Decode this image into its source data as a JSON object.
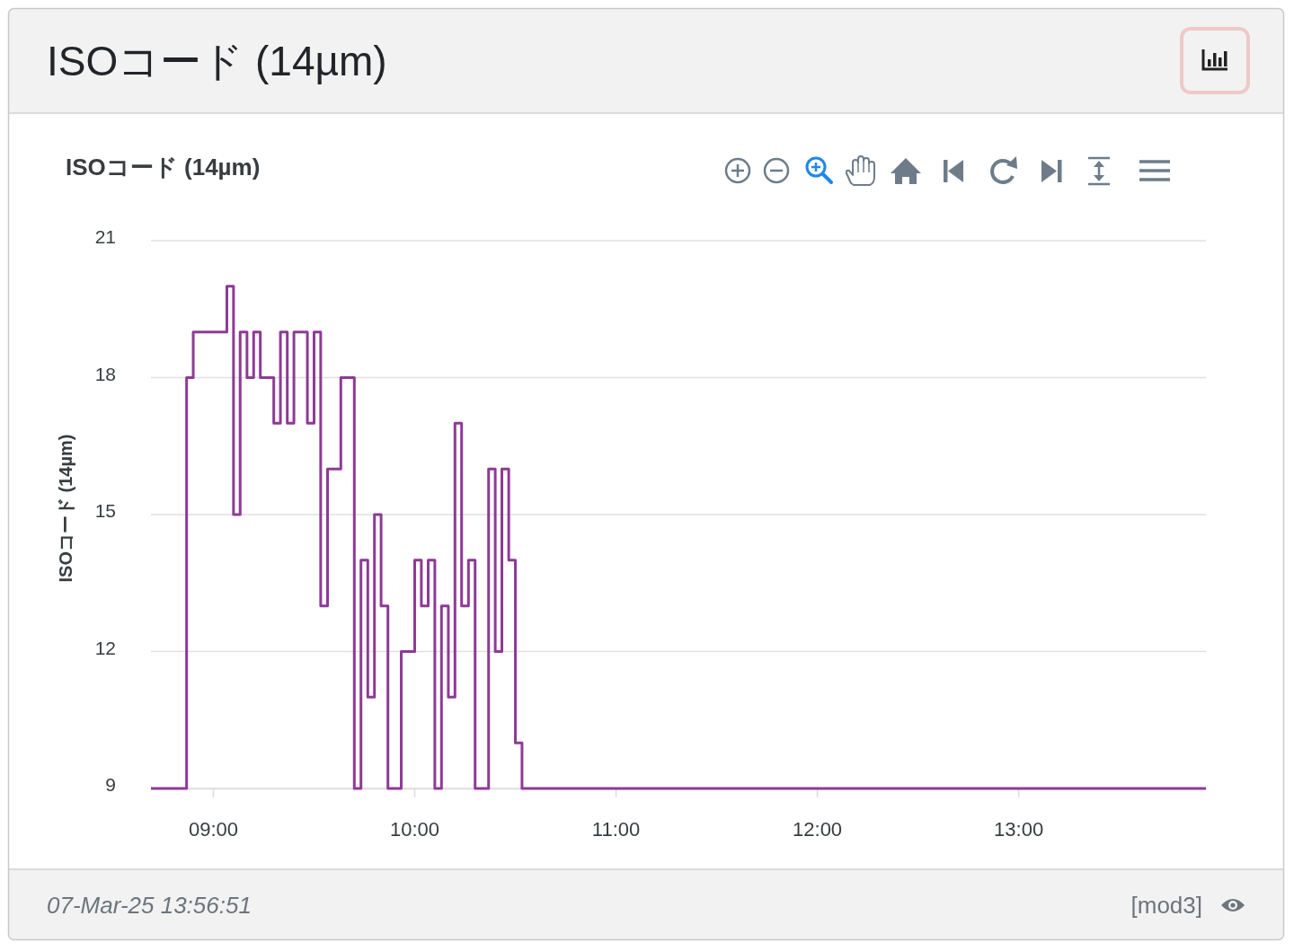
{
  "chart_data": {
    "type": "step",
    "title": "ISOコード (14µm)",
    "ylabel": "ISOコード (14µm)",
    "annotations": [
      "ISOコード (14µm)",
      "07-Mar-25 13:56:51",
      "[mod3]"
    ],
    "x": [
      8.69,
      8.867,
      8.9,
      9.067,
      9.1,
      9.133,
      9.167,
      9.2,
      9.233,
      9.3,
      9.333,
      9.367,
      9.4,
      9.467,
      9.5,
      9.533,
      9.567,
      9.633,
      9.7,
      9.733,
      9.767,
      9.8,
      9.833,
      9.867,
      9.933,
      10.0,
      10.033,
      10.067,
      10.1,
      10.133,
      10.167,
      10.2,
      10.233,
      10.267,
      10.3,
      10.367,
      10.4,
      10.433,
      10.467,
      10.5,
      10.533,
      13.93
    ],
    "values": [
      9,
      18,
      19,
      20,
      15,
      19,
      18,
      19,
      18,
      17,
      19,
      17,
      19,
      17,
      19,
      13,
      16,
      18,
      9,
      14,
      11,
      15,
      13,
      9,
      12,
      14,
      13,
      14,
      9,
      13,
      11,
      17,
      13,
      14,
      9,
      16,
      12,
      16,
      14,
      10,
      9,
      9
    ],
    "color": "#8e3a96",
    "xlim": [
      8.69,
      13.93
    ],
    "xticks": [
      {
        "value": 9,
        "label": "09:00"
      },
      {
        "value": 10,
        "label": "10:00"
      },
      {
        "value": 11,
        "label": "11:00"
      },
      {
        "value": 12,
        "label": "12:00"
      },
      {
        "value": 13,
        "label": "13:00"
      }
    ],
    "ylim": [
      9,
      21
    ],
    "yticks": [
      9,
      12,
      15,
      18,
      21
    ],
    "grid": "y"
  }
}
